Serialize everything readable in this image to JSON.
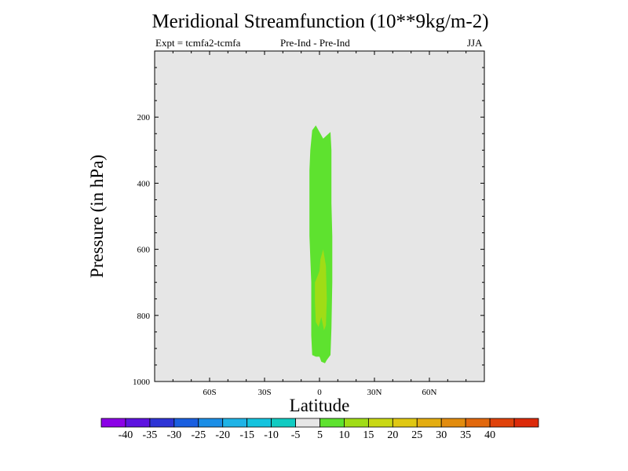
{
  "chart_data": {
    "type": "filled-contour",
    "title": "Meridional Streamfunction (10**9kg/m-2)",
    "left_subtitle": "Expt = tcmfa2-tcmfa",
    "center_subtitle": "Pre-Ind - Pre-Ind",
    "right_subtitle": "JJA",
    "xlabel": "Latitude",
    "ylabel": "Pressure (in hPa)",
    "xlim": [
      -90,
      90
    ],
    "ylim": [
      0,
      1000
    ],
    "y_inverted": true,
    "x_ticks": [
      {
        "value": -60,
        "label": "60S"
      },
      {
        "value": -30,
        "label": "30S"
      },
      {
        "value": 0,
        "label": "0"
      },
      {
        "value": 30,
        "label": "30N"
      },
      {
        "value": 60,
        "label": "60N"
      }
    ],
    "y_ticks": [
      {
        "value": 200,
        "label": "200"
      },
      {
        "value": 400,
        "label": "400"
      },
      {
        "value": 600,
        "label": "600"
      },
      {
        "value": 800,
        "label": "800"
      },
      {
        "value": 1000,
        "label": "1000"
      }
    ],
    "background_color": "#e6e6e6",
    "regions": [
      {
        "name": "region-5-to-10",
        "range": [
          5,
          10
        ],
        "color": "#5ee22f",
        "points": [
          [
            -5.5,
            360
          ],
          [
            -5,
            300
          ],
          [
            -4,
            240
          ],
          [
            -2,
            225
          ],
          [
            0,
            245
          ],
          [
            2,
            265
          ],
          [
            4,
            255
          ],
          [
            6,
            245
          ],
          [
            6.5,
            300
          ],
          [
            6.5,
            460
          ],
          [
            7,
            560
          ],
          [
            7,
            700
          ],
          [
            6.5,
            840
          ],
          [
            6,
            920
          ],
          [
            4,
            935
          ],
          [
            3,
            945
          ],
          [
            1,
            940
          ],
          [
            0,
            925
          ],
          [
            -2,
            925
          ],
          [
            -4,
            920
          ],
          [
            -4.5,
            860
          ],
          [
            -4.5,
            700
          ],
          [
            -5.5,
            560
          ],
          [
            -5.5,
            440
          ]
        ]
      },
      {
        "name": "region-10-to-15",
        "range": [
          10,
          15
        ],
        "color": "#a0dc16",
        "points": [
          [
            0,
            665
          ],
          [
            0.5,
            630
          ],
          [
            2,
            600
          ],
          [
            3.5,
            650
          ],
          [
            4,
            750
          ],
          [
            3.5,
            830
          ],
          [
            2.5,
            845
          ],
          [
            1,
            805
          ],
          [
            -0.5,
            835
          ],
          [
            -2,
            820
          ],
          [
            -2.5,
            760
          ],
          [
            -2.5,
            700
          ],
          [
            -1,
            680
          ]
        ]
      }
    ],
    "colorbar": {
      "colors": [
        "#8b00e6",
        "#5d12e0",
        "#2e34d6",
        "#1a5fe0",
        "#1b8ee6",
        "#1fb3e6",
        "#14c3de",
        "#10cbc2",
        "#e6e6e6",
        "#5ee22f",
        "#a0dc16",
        "#c9d814",
        "#e0c812",
        "#e4ad10",
        "#e28c0e",
        "#e2680c",
        "#e0420b",
        "#dc2a0a"
      ],
      "labels": [
        "-40",
        "-35",
        "-30",
        "-25",
        "-20",
        "-15",
        "-10",
        "-5",
        "5",
        "10",
        "15",
        "20",
        "25",
        "30",
        "35",
        "40"
      ]
    }
  }
}
